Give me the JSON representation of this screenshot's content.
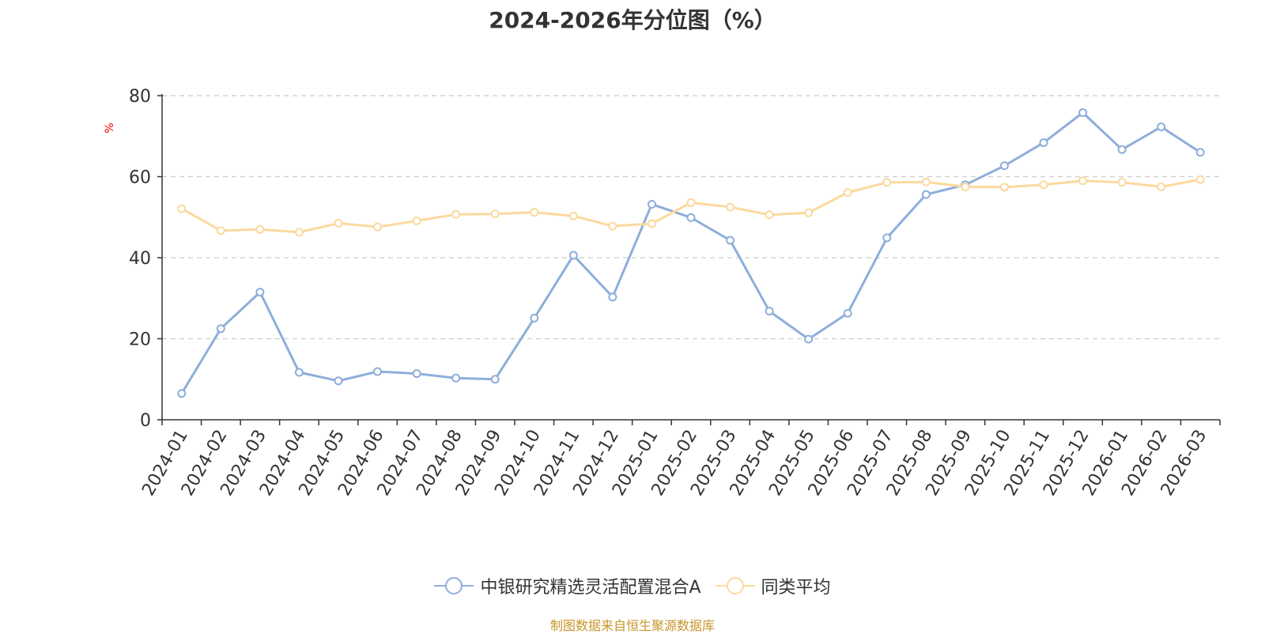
{
  "chart_data": {
    "type": "line",
    "title": "2024-2026年分位图（%）",
    "ylabel": "%",
    "ylim": [
      0,
      80
    ],
    "yticks": [
      0,
      20,
      40,
      60,
      80
    ],
    "grid": "horizontal-dashed",
    "legend_position": "bottom",
    "categories": [
      "2024-01",
      "2024-02",
      "2024-03",
      "2024-04",
      "2024-05",
      "2024-06",
      "2024-07",
      "2024-08",
      "2024-09",
      "2024-10",
      "2024-11",
      "2024-12",
      "2025-01",
      "2025-02",
      "2025-03",
      "2025-04",
      "2025-05",
      "2025-06",
      "2025-07",
      "2025-08",
      "2025-09",
      "2025-10",
      "2025-11",
      "2025-12",
      "2026-01",
      "2026-02",
      "2026-03"
    ],
    "series": [
      {
        "name": "中银研究精选灵活配置混合A",
        "color": "#8eaedb",
        "values": [
          6.5,
          22.5,
          31.5,
          11.7,
          9.6,
          11.9,
          11.4,
          10.3,
          10.0,
          25.1,
          40.6,
          30.3,
          53.2,
          49.9,
          44.3,
          26.8,
          19.9,
          26.3,
          44.9,
          55.6,
          58.0,
          62.7,
          68.4,
          75.8,
          66.7,
          72.3,
          66.0
        ]
      },
      {
        "name": "同类平均",
        "color": "#fcd99e",
        "values": [
          52.1,
          46.7,
          47.0,
          46.3,
          48.5,
          47.6,
          49.1,
          50.7,
          50.8,
          51.2,
          50.3,
          47.8,
          48.4,
          53.6,
          52.5,
          50.6,
          51.1,
          56.1,
          58.6,
          58.7,
          57.5,
          57.4,
          58.0,
          59.0,
          58.6,
          57.5,
          59.3
        ]
      }
    ],
    "source": "制图数据来自恒生聚源数据库",
    "colors": {
      "axis": "#333333",
      "grid": "#cccccc",
      "ylabel": "#ff0000",
      "source": "#c8952a",
      "text": "#333333"
    }
  }
}
